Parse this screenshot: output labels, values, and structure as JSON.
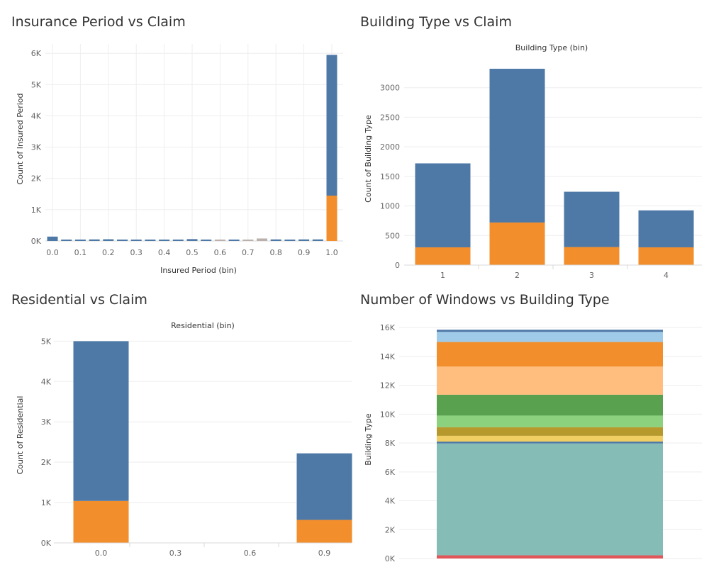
{
  "colors": {
    "blue": "#4e79a7",
    "orange": "#f28e2b",
    "gray": "#bab0ac"
  },
  "panels": {
    "p1": {
      "title": "Insurance Period vs Claim"
    },
    "p2": {
      "title": "Building Type vs Claim"
    },
    "p3": {
      "title": "Residential vs Claim"
    },
    "p4": {
      "title": "Number of Windows vs Building Type"
    }
  },
  "chart_data": [
    {
      "id": "insurance_period",
      "type": "bar",
      "title": "Insurance Period vs Claim",
      "xlabel": "Insured Period (bin)",
      "ylabel": "Count of Insured Period",
      "x_ticks": [
        "0.0",
        "0.1",
        "0.2",
        "0.3",
        "0.4",
        "0.5",
        "0.6",
        "0.7",
        "0.8",
        "0.9",
        "1.0"
      ],
      "y_ticks": [
        "0K",
        "1K",
        "2K",
        "3K",
        "4K",
        "5K",
        "6K"
      ],
      "ylim": [
        0,
        6300
      ],
      "grid": true,
      "x": [
        0.0,
        0.05,
        0.1,
        0.15,
        0.2,
        0.25,
        0.3,
        0.35,
        0.4,
        0.45,
        0.5,
        0.55,
        0.6,
        0.65,
        0.7,
        0.75,
        0.8,
        0.85,
        0.9,
        0.95,
        1.0
      ],
      "series": [
        {
          "values": [
            140,
            20,
            40,
            50,
            55,
            40,
            30,
            20,
            30,
            30,
            60,
            40,
            20,
            30,
            40,
            80,
            50,
            40,
            50,
            50,
            4500
          ]
        },
        {
          "values": [
            0,
            0,
            0,
            0,
            0,
            0,
            0,
            0,
            0,
            0,
            0,
            0,
            0,
            0,
            0,
            0,
            0,
            0,
            0,
            0,
            1450
          ]
        }
      ]
    },
    {
      "id": "building_type",
      "type": "bar",
      "title": "Building Type vs Claim",
      "xlabel": "Building Type (bin)",
      "ylabel": "Count of Building Type",
      "categories": [
        "1",
        "2",
        "3",
        "4"
      ],
      "y_ticks": [
        "0",
        "500",
        "1000",
        "1500",
        "2000",
        "2500",
        "3000"
      ],
      "ylim": [
        0,
        3500
      ],
      "grid": true,
      "series": [
        {
          "values": [
            1420,
            2600,
            935,
            625
          ]
        },
        {
          "values": [
            300,
            720,
            305,
            300
          ]
        }
      ]
    },
    {
      "id": "residential",
      "type": "bar",
      "title": "Residential vs Claim",
      "xlabel": "Residential (bin)",
      "ylabel": "Count of Residential",
      "categories": [
        "0.0",
        "0.3",
        "0.6",
        "0.9"
      ],
      "y_ticks": [
        "0K",
        "1K",
        "2K",
        "3K",
        "4K",
        "5K"
      ],
      "ylim": [
        0,
        5200
      ],
      "grid": true,
      "series": [
        {
          "values": [
            3960,
            0,
            0,
            1650
          ]
        },
        {
          "values": [
            1040,
            0,
            0,
            570
          ]
        }
      ]
    },
    {
      "id": "windows",
      "type": "bar",
      "title": "Number of Windows vs Building Type",
      "xlabel": "",
      "ylabel": "Building Type",
      "y_ticks": [
        "0K",
        "2K",
        "4K",
        "6K",
        "8K",
        "10K",
        "12K",
        "14K",
        "16K"
      ],
      "ylim": [
        0,
        16500
      ],
      "grid": true,
      "stack": [
        {
          "value": 220,
          "color": "#e15759"
        },
        {
          "value": 7750,
          "color": "#86bcb6"
        },
        {
          "value": 130,
          "color": "#4e79a7"
        },
        {
          "value": 400,
          "color": "#f1ce63"
        },
        {
          "value": 600,
          "color": "#b6992d"
        },
        {
          "value": 800,
          "color": "#8cd17d"
        },
        {
          "value": 1450,
          "color": "#59a14f"
        },
        {
          "value": 1950,
          "color": "#ffbe7d"
        },
        {
          "value": 1700,
          "color": "#f28e2b"
        },
        {
          "value": 700,
          "color": "#a0cbe8"
        },
        {
          "value": 150,
          "color": "#4e79a7"
        }
      ]
    }
  ]
}
